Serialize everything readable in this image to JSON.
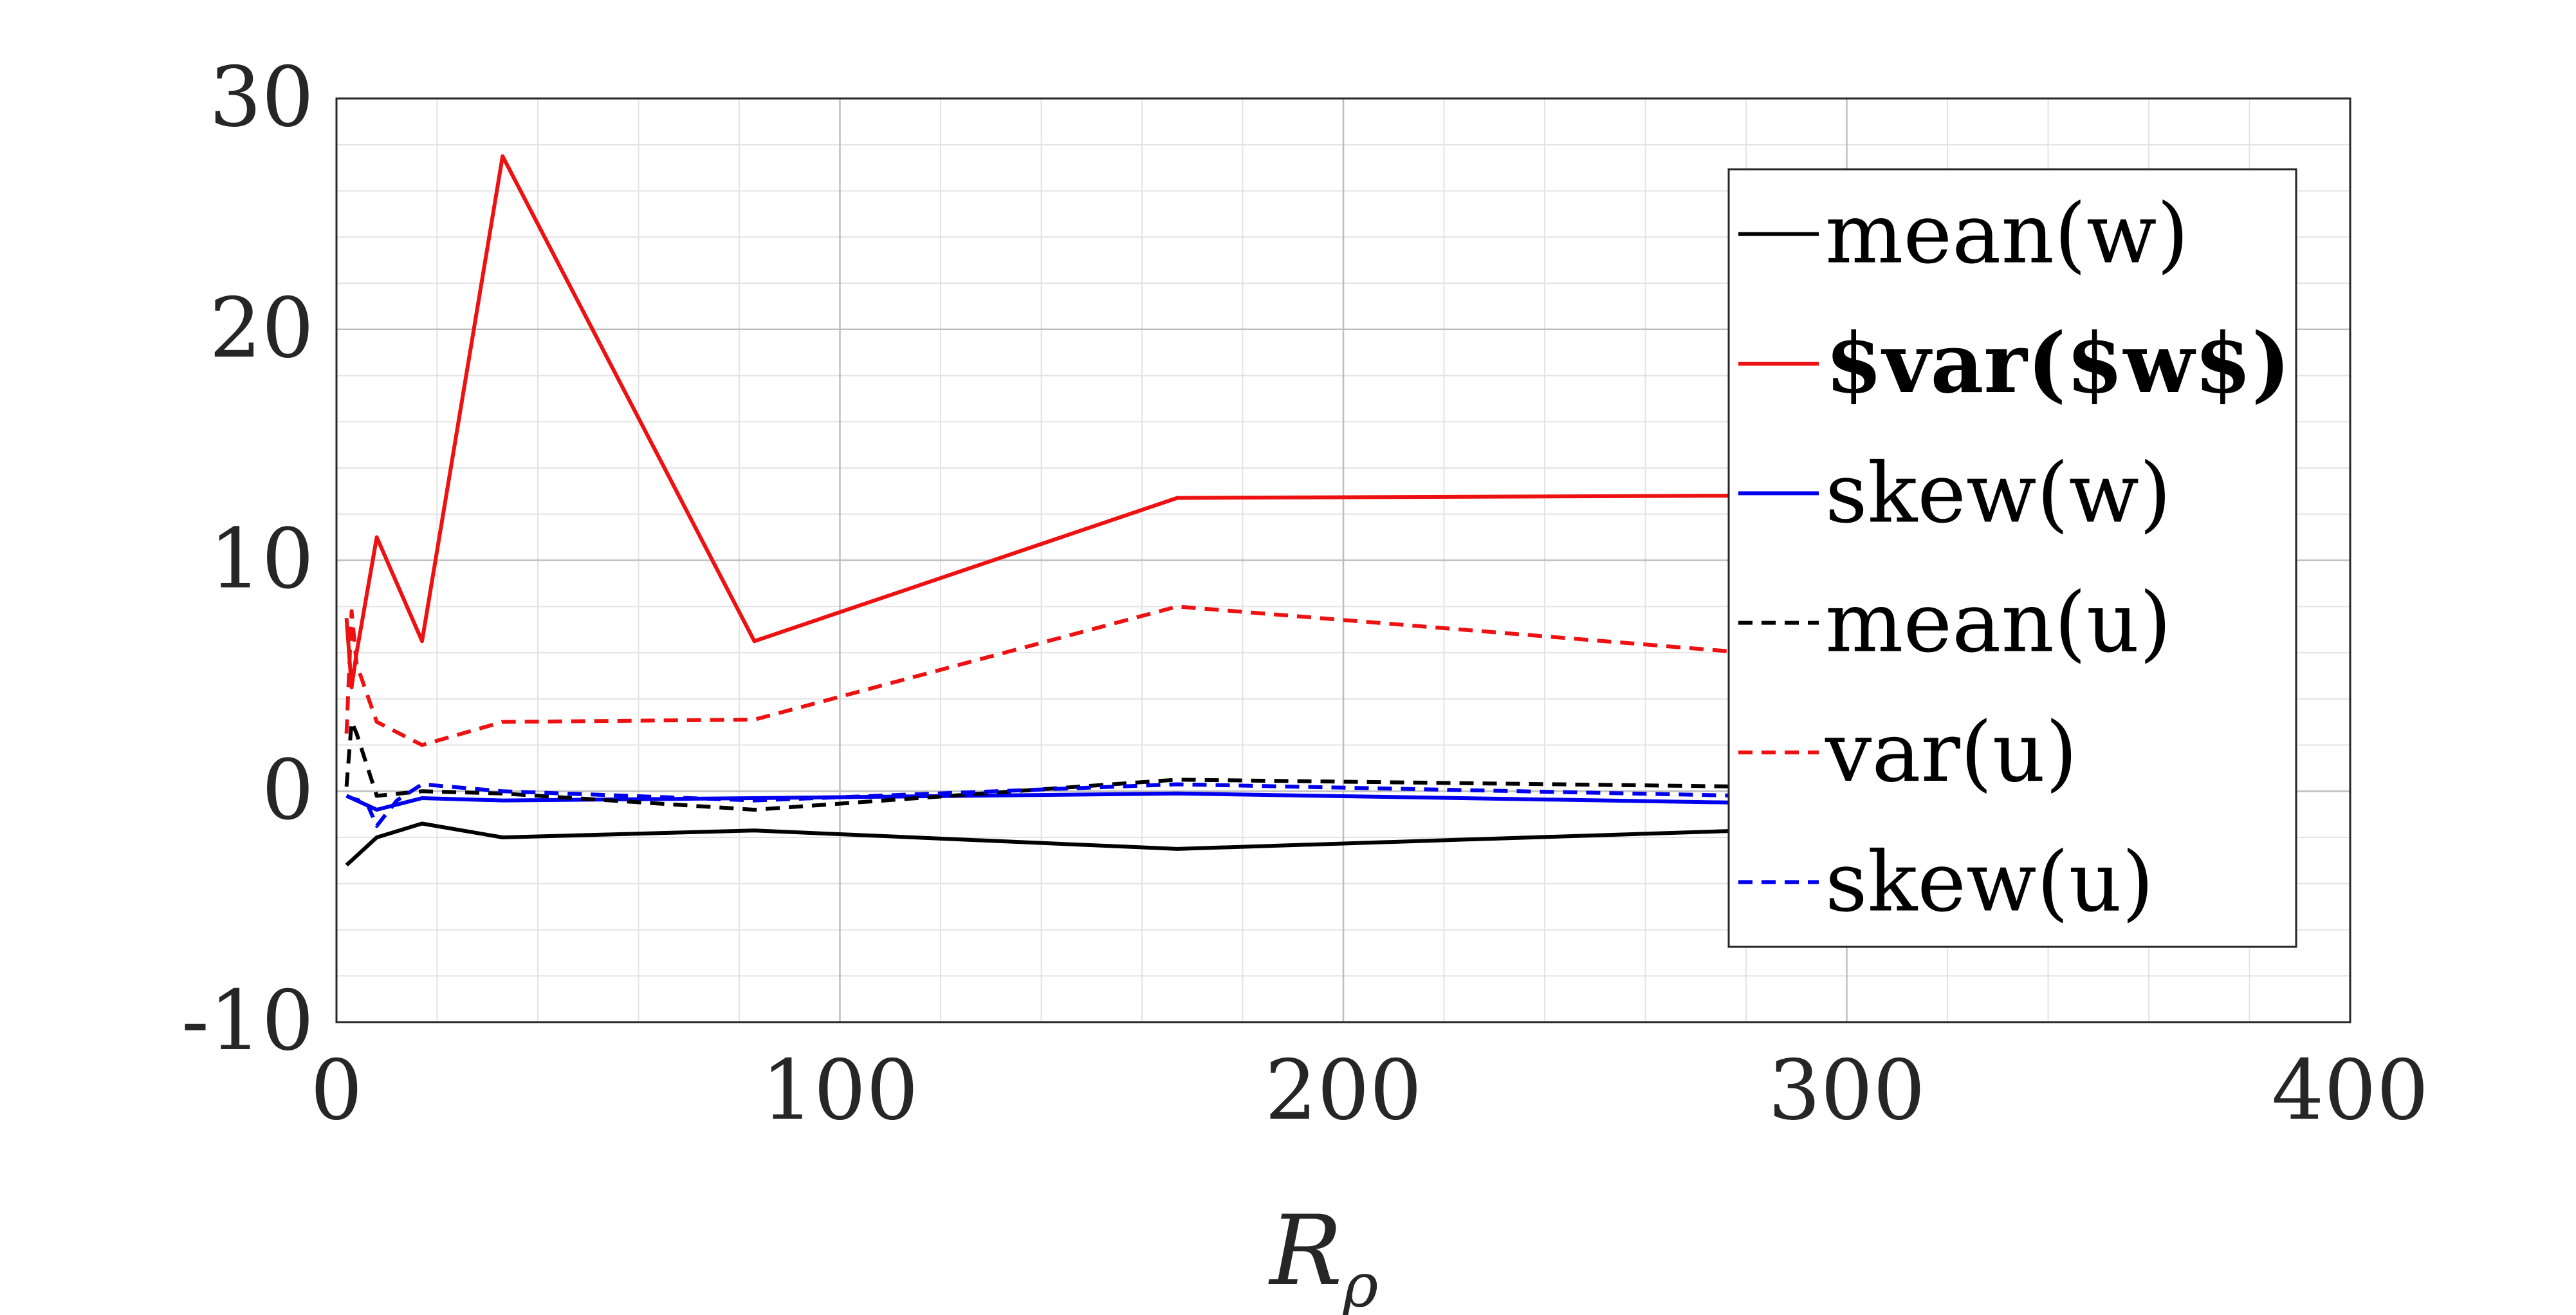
{
  "chart_data": {
    "type": "line",
    "xlabel": "R",
    "xlabel_subscript": "ρ",
    "ylabel": "",
    "xlim": [
      0,
      400
    ],
    "ylim": [
      -10,
      30
    ],
    "xticks": [
      0,
      100,
      200,
      300,
      400
    ],
    "yticks": [
      -10,
      0,
      10,
      20,
      30
    ],
    "xtick_labels": [
      "0",
      "100",
      "200",
      "300",
      "400"
    ],
    "ytick_labels": [
      "-10",
      "0",
      "10",
      "20",
      "30"
    ],
    "grid": true,
    "minor_grid": true,
    "legend_position": "top-right",
    "series": [
      {
        "name": "mean(w)",
        "color": "#000000",
        "dash": "solid",
        "bold": false,
        "x": [
          2,
          3,
          8,
          17,
          33,
          83,
          167,
          280
        ],
        "y": [
          -3.2,
          -3.0,
          -2.0,
          -1.4,
          -2.0,
          -1.7,
          -2.5,
          -1.7
        ]
      },
      {
        "name": "$var($w$)",
        "color": "#ee1111",
        "dash": "solid",
        "bold": true,
        "x": [
          2,
          3,
          4,
          8,
          17,
          33,
          83,
          167,
          280
        ],
        "y": [
          7.5,
          4.5,
          6.0,
          11.0,
          6.5,
          27.5,
          6.5,
          12.7,
          12.8
        ]
      },
      {
        "name": "skew(w)",
        "color": "#0000ee",
        "dash": "solid",
        "bold": false,
        "x": [
          2,
          3,
          8,
          17,
          33,
          83,
          167,
          280
        ],
        "y": [
          -0.2,
          -0.3,
          -0.8,
          -0.3,
          -0.4,
          -0.3,
          -0.1,
          -0.5
        ]
      },
      {
        "name": "mean(u)",
        "color": "#000000",
        "dash": "dashed",
        "bold": false,
        "x": [
          2,
          3,
          4,
          8,
          17,
          33,
          83,
          167,
          280
        ],
        "y": [
          0.2,
          3.0,
          2.5,
          -0.2,
          0.0,
          -0.1,
          -0.8,
          0.5,
          0.2
        ]
      },
      {
        "name": "var(u)",
        "color": "#ee1111",
        "dash": "dashed",
        "bold": false,
        "x": [
          2,
          3,
          4,
          8,
          17,
          33,
          83,
          167,
          280
        ],
        "y": [
          2.5,
          7.8,
          5.5,
          3.0,
          2.0,
          3.0,
          3.1,
          8.0,
          6.0
        ]
      },
      {
        "name": "skew(u)",
        "color": "#0000ee",
        "dash": "dashed",
        "bold": false,
        "x": [
          2,
          3,
          6,
          8,
          12,
          17,
          33,
          83,
          167,
          280
        ],
        "y": [
          -0.2,
          -0.3,
          -0.5,
          -1.5,
          -0.4,
          0.3,
          0.0,
          -0.4,
          0.3,
          -0.2
        ]
      }
    ]
  }
}
